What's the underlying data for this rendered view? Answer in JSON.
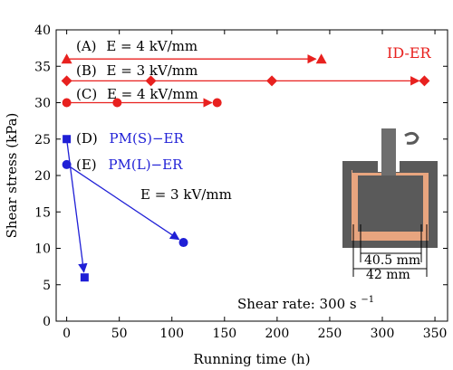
{
  "chart_data": {
    "type": "scatter",
    "xlabel": "Running time (h)",
    "ylabel": "Shear stress (kPa)",
    "xlim": [
      -10,
      362
    ],
    "ylim": [
      0,
      40
    ],
    "xticks": [
      0,
      50,
      100,
      150,
      200,
      250,
      300,
      350
    ],
    "yticks": [
      0,
      5,
      10,
      15,
      20,
      25,
      30,
      35,
      40
    ],
    "grid": false,
    "series": [
      {
        "name": "(A)",
        "label_eq": "E = 4 kV/mm",
        "group": "ID-ER",
        "marker": "triangle",
        "color": "#e8211f",
        "x": [
          0,
          242
        ],
        "y": [
          36,
          36
        ]
      },
      {
        "name": "(B)",
        "label_eq": "E = 3 kV/mm",
        "group": "ID-ER",
        "marker": "diamond",
        "color": "#e8211f",
        "x": [
          0,
          80,
          195,
          340
        ],
        "y": [
          33,
          33,
          33,
          33
        ]
      },
      {
        "name": "(C)",
        "label_eq": "E = 4 kV/mm",
        "group": "ID-ER",
        "marker": "circle",
        "color": "#e8211f",
        "x": [
          0,
          48,
          143
        ],
        "y": [
          30,
          30,
          30
        ]
      },
      {
        "name": "(D)",
        "label_eq": "PM(S)−ER",
        "group": "PM-ER",
        "marker": "square",
        "color": "#1f1fd6",
        "x": [
          0,
          17
        ],
        "y": [
          25,
          6
        ]
      },
      {
        "name": "(E)",
        "label_eq": "PM(L)−ER",
        "group": "PM-ER",
        "marker": "circle",
        "color": "#1f1fd6",
        "x": [
          0,
          111
        ],
        "y": [
          21.5,
          10.8
        ]
      }
    ],
    "annotations": {
      "id_er_label": "ID-ER",
      "e_field_label": "E = 3 kV/mm",
      "shear_rate": "Shear rate: 300 s",
      "shear_rate_exp": "−1",
      "inner_diameter": "40.5 mm",
      "outer_diameter": "42 mm"
    }
  }
}
